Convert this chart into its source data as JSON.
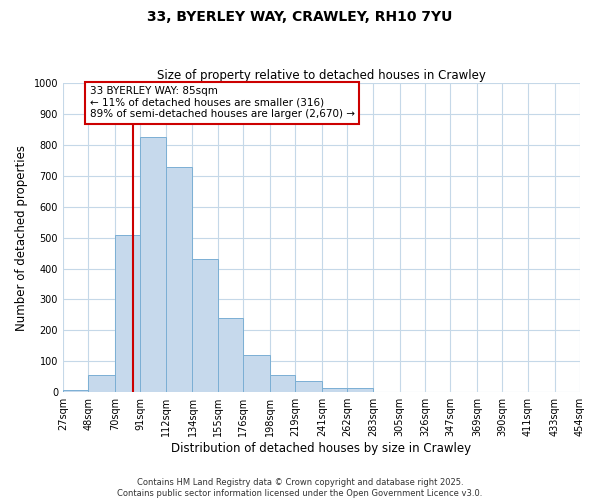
{
  "title": "33, BYERLEY WAY, CRAWLEY, RH10 7YU",
  "subtitle": "Size of property relative to detached houses in Crawley",
  "xlabel": "Distribution of detached houses by size in Crawley",
  "ylabel": "Number of detached properties",
  "bin_edges": [
    27,
    48,
    70,
    91,
    112,
    134,
    155,
    176,
    198,
    219,
    241,
    262,
    283,
    305,
    326,
    347,
    369,
    390,
    411,
    433,
    454
  ],
  "counts": [
    8,
    55,
    510,
    825,
    730,
    430,
    240,
    120,
    55,
    35,
    12,
    15,
    0,
    0,
    0,
    0,
    0,
    0,
    0,
    0
  ],
  "bar_color": "#c6d9ec",
  "bar_edge_color": "#7bafd4",
  "property_size": 85,
  "vline_color": "#cc0000",
  "annotation_text": "33 BYERLEY WAY: 85sqm\n← 11% of detached houses are smaller (316)\n89% of semi-detached houses are larger (2,670) →",
  "annotation_box_facecolor": "#ffffff",
  "annotation_box_edgecolor": "#cc0000",
  "ylim": [
    0,
    1000
  ],
  "yticks": [
    0,
    100,
    200,
    300,
    400,
    500,
    600,
    700,
    800,
    900,
    1000
  ],
  "footer_line1": "Contains HM Land Registry data © Crown copyright and database right 2025.",
  "footer_line2": "Contains public sector information licensed under the Open Government Licence v3.0.",
  "bg_color": "#ffffff",
  "grid_color": "#c5d8e8",
  "title_fontsize": 10,
  "subtitle_fontsize": 8.5,
  "tick_label_fontsize": 7,
  "axis_label_fontsize": 8.5
}
